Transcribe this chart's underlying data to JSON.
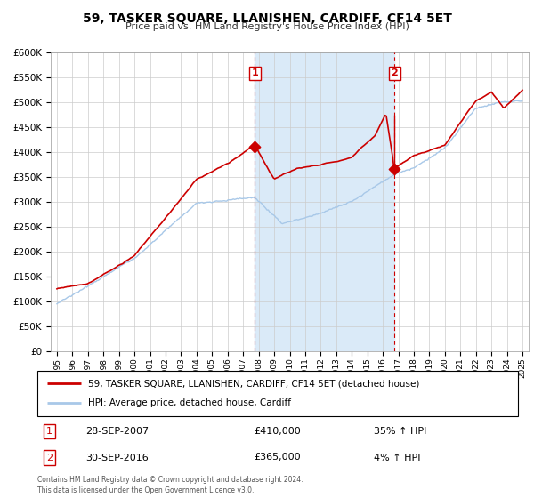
{
  "title": "59, TASKER SQUARE, LLANISHEN, CARDIFF, CF14 5ET",
  "subtitle": "Price paid vs. HM Land Registry's House Price Index (HPI)",
  "legend_line1": "59, TASKER SQUARE, LLANISHEN, CARDIFF, CF14 5ET (detached house)",
  "legend_line2": "HPI: Average price, detached house, Cardiff",
  "annotation1_label": "1",
  "annotation1_date": "28-SEP-2007",
  "annotation1_price": "£410,000",
  "annotation1_hpi": "35% ↑ HPI",
  "annotation2_label": "2",
  "annotation2_date": "30-SEP-2016",
  "annotation2_price": "£365,000",
  "annotation2_hpi": "4% ↑ HPI",
  "footer": "Contains HM Land Registry data © Crown copyright and database right 2024.\nThis data is licensed under the Open Government Licence v3.0.",
  "hpi_color": "#a8c8e8",
  "hpi_fill_color": "#daeaf8",
  "price_color": "#cc0000",
  "dashed_color": "#cc0000",
  "ylim": [
    0,
    600000
  ],
  "yticks": [
    0,
    50000,
    100000,
    150000,
    200000,
    250000,
    300000,
    350000,
    400000,
    450000,
    500000,
    550000,
    600000
  ],
  "sale1_year": 2007.75,
  "sale1_price": 410000,
  "sale2_year": 2016.75,
  "sale2_price": 365000,
  "xmin": 1995,
  "xmax": 2025
}
